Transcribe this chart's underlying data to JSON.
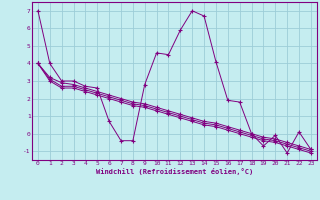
{
  "xlabel": "Windchill (Refroidissement éolien,°C)",
  "bg_color": "#c5edf0",
  "line_color": "#800080",
  "grid_color": "#9dcdd8",
  "spine_color": "#800080",
  "xlim": [
    -0.5,
    23.5
  ],
  "ylim": [
    -1.5,
    7.5
  ],
  "yticks": [
    -1,
    0,
    1,
    2,
    3,
    4,
    5,
    6,
    7
  ],
  "xticks": [
    0,
    1,
    2,
    3,
    4,
    5,
    6,
    7,
    8,
    9,
    10,
    11,
    12,
    13,
    14,
    15,
    16,
    17,
    18,
    19,
    20,
    21,
    22,
    23
  ],
  "series": [
    [
      7,
      4,
      3,
      3,
      2.7,
      2.6,
      0.7,
      -0.4,
      -0.4,
      2.8,
      4.6,
      4.5,
      5.9,
      7.0,
      6.7,
      4.1,
      1.9,
      1.8,
      0.0,
      -0.7,
      -0.1,
      -1.1,
      0.1,
      -0.9
    ],
    [
      4,
      3.2,
      2.9,
      2.8,
      2.6,
      2.4,
      2.2,
      2.0,
      1.8,
      1.7,
      1.5,
      1.3,
      1.1,
      0.9,
      0.7,
      0.6,
      0.4,
      0.2,
      0.0,
      -0.2,
      -0.3,
      -0.5,
      -0.7,
      -0.9
    ],
    [
      4,
      3.1,
      2.7,
      2.7,
      2.5,
      2.3,
      2.1,
      1.9,
      1.7,
      1.6,
      1.4,
      1.2,
      1.0,
      0.8,
      0.6,
      0.5,
      0.3,
      0.1,
      -0.1,
      -0.3,
      -0.4,
      -0.6,
      -0.8,
      -1.0
    ],
    [
      4,
      3.0,
      2.6,
      2.6,
      2.4,
      2.2,
      2.0,
      1.8,
      1.6,
      1.5,
      1.3,
      1.1,
      0.9,
      0.7,
      0.5,
      0.4,
      0.2,
      0.0,
      -0.2,
      -0.4,
      -0.5,
      -0.7,
      -0.9,
      -1.1
    ]
  ]
}
